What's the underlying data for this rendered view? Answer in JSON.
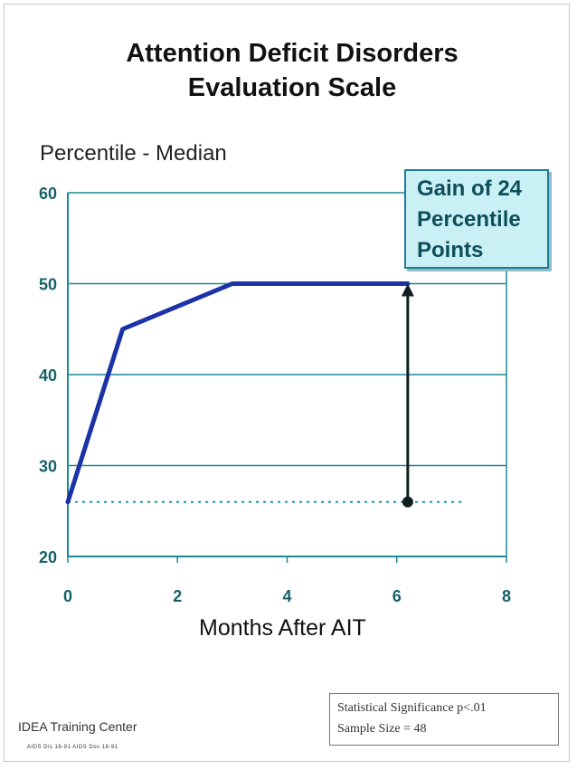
{
  "title": {
    "line1": "Attention Deficit Disorders",
    "line2": "Evaluation Scale"
  },
  "chart_data": {
    "type": "line",
    "title": "Attention Deficit Disorders Evaluation Scale",
    "ylabel": "Percentile - Median",
    "xlabel": "Months After AIT",
    "xlim": [
      0,
      8
    ],
    "ylim": [
      20,
      60
    ],
    "xticks": [
      0,
      2,
      4,
      6,
      8
    ],
    "yticks": [
      20,
      30,
      40,
      50,
      60
    ],
    "grid": "horizontal",
    "series": [
      {
        "x": [
          0,
          1,
          3,
          6.2
        ],
        "y": [
          26,
          45,
          50,
          50
        ],
        "color": "#1c33a8"
      }
    ],
    "baseline": {
      "y": 26,
      "x_from": 0,
      "x_to": 7.2,
      "style": "dotted",
      "color": "#1a9aa3"
    },
    "gain_arrow": {
      "x": 6.2,
      "from": 26,
      "to": 50,
      "color": "#0d1f22"
    },
    "annotation": {
      "lines": [
        "Gain of 24",
        "Percentile",
        "Points"
      ]
    },
    "colors": {
      "axis": "#1a8a96",
      "grid": "#1a8a96",
      "tick_label": "#16606a"
    }
  },
  "footer": {
    "org": "IDEA Training Center",
    "small": "AIDS Dis 18-91 AIDS Dox 18-91",
    "stats": {
      "line1": "Statistical Significance   p<.01",
      "line2": "Sample Size = 48"
    }
  }
}
